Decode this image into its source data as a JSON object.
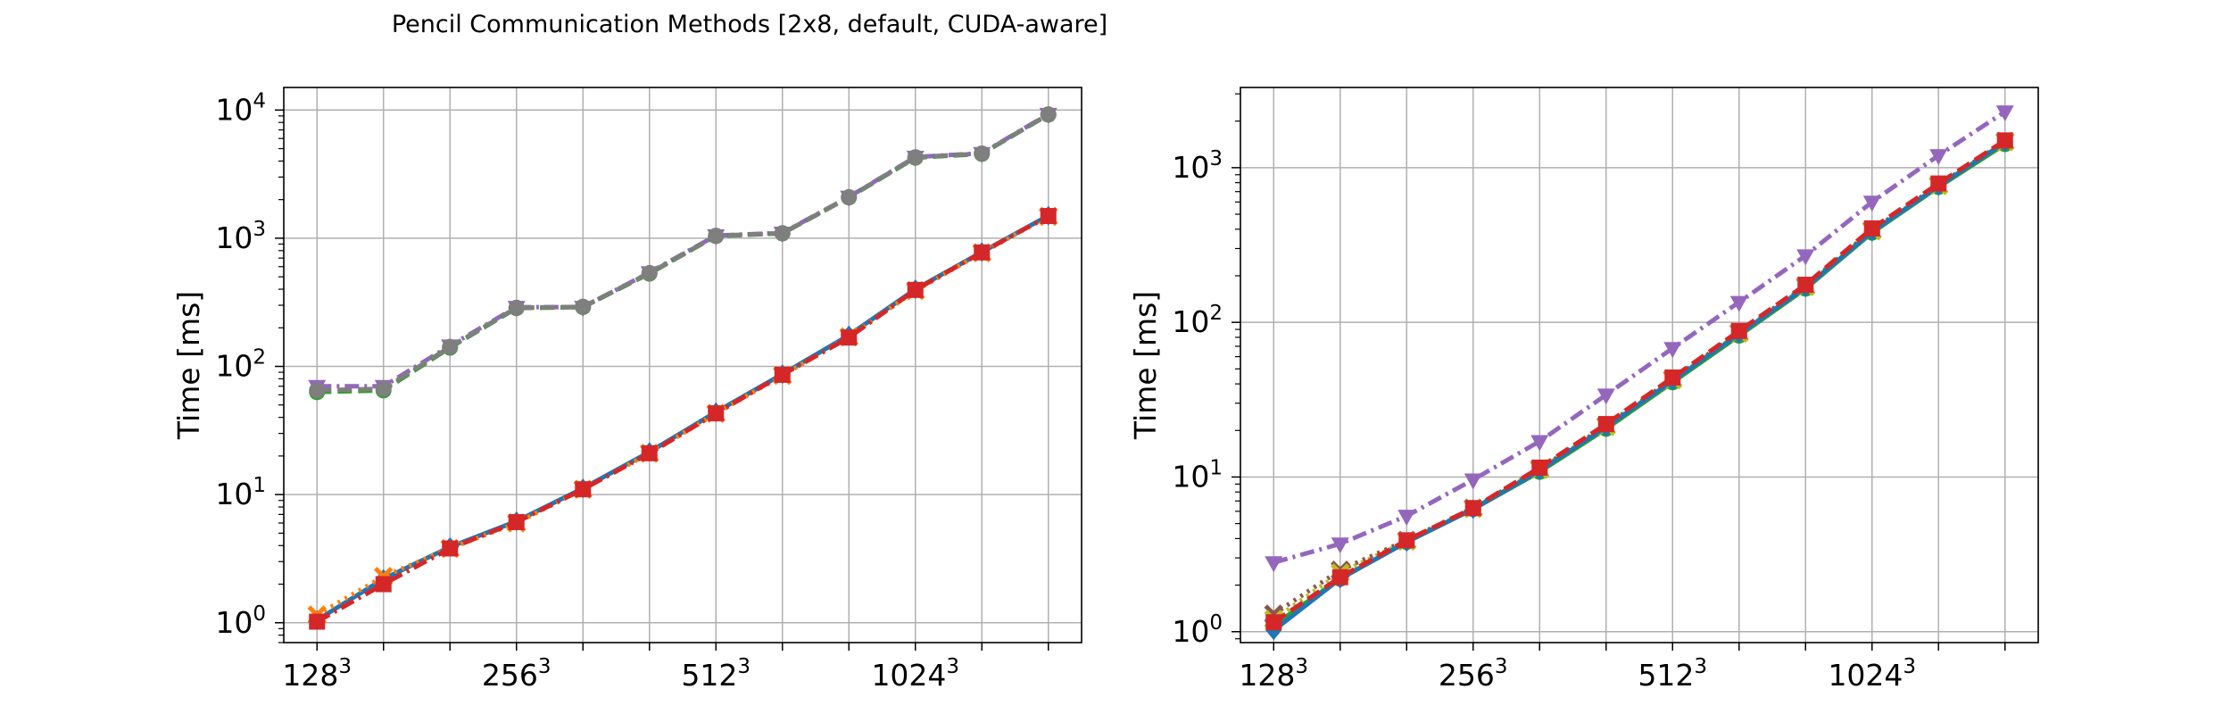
{
  "title": "Pencil Communication Methods [2x8, default, CUDA-aware]",
  "chart_data": [
    {
      "type": "line",
      "subplot": "left",
      "ylabel": "Time [ms]",
      "yscale": "log",
      "ylim": [
        0.7,
        15000
      ],
      "xlim": [
        -0.5,
        11.5
      ],
      "grid": true,
      "x": [
        0,
        1,
        2,
        3,
        4,
        5,
        6,
        7,
        8,
        9,
        10,
        11
      ],
      "xticks": [
        {
          "pos": 0,
          "base": "128",
          "exp": "3"
        },
        {
          "pos": 3,
          "base": "256",
          "exp": "3"
        },
        {
          "pos": 6,
          "base": "512",
          "exp": "3"
        },
        {
          "pos": 9,
          "base": "1024",
          "exp": "3"
        }
      ],
      "yticks": [
        {
          "value": 1,
          "base": "10",
          "exp": "0"
        },
        {
          "value": 10,
          "base": "10",
          "exp": "1"
        },
        {
          "value": 100,
          "base": "10",
          "exp": "2"
        },
        {
          "value": 1000,
          "base": "10",
          "exp": "3"
        },
        {
          "value": 10000,
          "base": "10",
          "exp": "4"
        }
      ],
      "series": [
        {
          "color": "#9467bd",
          "dash": "dashdot",
          "marker": "triangle-down",
          "values": [
            70,
            70,
            145,
            290,
            290,
            540,
            1050,
            1100,
            2100,
            4300,
            4600,
            9300
          ]
        },
        {
          "color": "#2ca02c",
          "dash": "dashed",
          "marker": "circle",
          "values": [
            63,
            65,
            140,
            285,
            290,
            530,
            1040,
            1090,
            2080,
            4250,
            4550,
            9200
          ]
        },
        {
          "color": "#7f7f7f",
          "dash": "dashed",
          "marker": "circle",
          "values": [
            65,
            67,
            142,
            287,
            292,
            535,
            1045,
            1095,
            2090,
            4280,
            4580,
            9250
          ]
        },
        {
          "color": "#1f77b4",
          "dash": "solid",
          "marker": "diamond",
          "values": [
            1.05,
            2.2,
            3.9,
            6.2,
            11.2,
            21.5,
            44,
            87,
            175,
            400,
            780,
            1500
          ]
        },
        {
          "color": "#ff7f0e",
          "dash": "dotted",
          "marker": "x",
          "values": [
            1.15,
            2.3,
            3.8,
            6.0,
            11.0,
            21,
            43,
            85,
            170,
            390,
            770,
            1480
          ]
        },
        {
          "color": "#d62728",
          "dash": "dashdot",
          "marker": "square",
          "values": [
            1.02,
            2.0,
            3.8,
            6.1,
            11.0,
            21,
            43,
            86,
            168,
            395,
            775,
            1490
          ]
        }
      ]
    },
    {
      "type": "line",
      "subplot": "right",
      "ylabel": "Time [ms]",
      "yscale": "log",
      "ylim": [
        0.85,
        3300
      ],
      "xlim": [
        -0.5,
        11.5
      ],
      "grid": true,
      "x": [
        0,
        1,
        2,
        3,
        4,
        5,
        6,
        7,
        8,
        9,
        10,
        11
      ],
      "xticks": [
        {
          "pos": 0,
          "base": "128",
          "exp": "3"
        },
        {
          "pos": 3,
          "base": "256",
          "exp": "3"
        },
        {
          "pos": 6,
          "base": "512",
          "exp": "3"
        },
        {
          "pos": 9,
          "base": "1024",
          "exp": "3"
        }
      ],
      "yticks": [
        {
          "value": 1,
          "base": "10",
          "exp": "0"
        },
        {
          "value": 10,
          "base": "10",
          "exp": "1"
        },
        {
          "value": 100,
          "base": "10",
          "exp": "2"
        },
        {
          "value": 1000,
          "base": "10",
          "exp": "3"
        }
      ],
      "series": [
        {
          "color": "#9467bd",
          "dash": "dashdot",
          "marker": "triangle-down",
          "values": [
            2.8,
            3.7,
            5.6,
            9.6,
            17,
            34,
            68,
            135,
            270,
            600,
            1200,
            2300
          ]
        },
        {
          "color": "#2ca02c",
          "dash": "solid",
          "marker": "circle",
          "values": [
            1.1,
            2.2,
            3.8,
            6.2,
            10.8,
            20.5,
            41,
            82,
            165,
            380,
            750,
            1420
          ]
        },
        {
          "color": "#8c564b",
          "dash": "dotted",
          "marker": "x",
          "values": [
            1.3,
            2.5,
            3.9,
            6.3,
            11.3,
            21.5,
            43,
            86,
            172,
            395,
            770,
            1480
          ]
        },
        {
          "color": "#bcbd22",
          "dash": "dotted",
          "marker": "x",
          "values": [
            1.2,
            2.4,
            3.85,
            6.25,
            11.2,
            21.2,
            42.5,
            85,
            170,
            390,
            765,
            1470
          ]
        },
        {
          "color": "#1f77b4",
          "dash": "solid",
          "marker": "diamond",
          "values": [
            1.02,
            2.2,
            3.8,
            6.2,
            11.0,
            21,
            42,
            84,
            168,
            385,
            760,
            1460
          ]
        },
        {
          "color": "#d62728",
          "dash": "dashed",
          "marker": "square",
          "values": [
            1.15,
            2.25,
            3.9,
            6.3,
            11.5,
            22,
            44,
            88,
            175,
            405,
            790,
            1500
          ]
        }
      ]
    }
  ]
}
